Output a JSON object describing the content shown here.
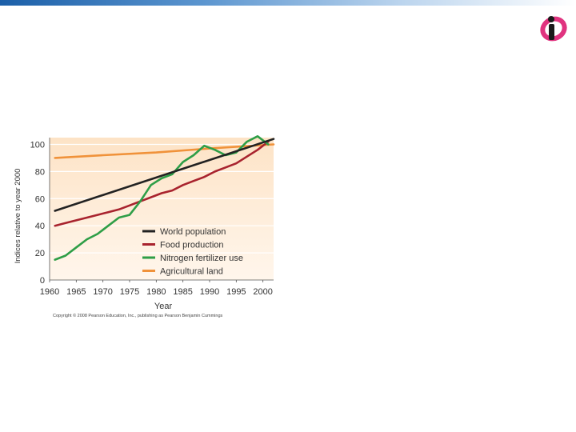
{
  "chart_data": {
    "type": "line",
    "title": "",
    "xlabel": "Year",
    "ylabel": "Indices relative to year 2000",
    "xlim": [
      1960,
      2002
    ],
    "ylim": [
      0,
      105
    ],
    "x_ticks": [
      1960,
      1965,
      1970,
      1975,
      1980,
      1985,
      1990,
      1995,
      2000
    ],
    "y_ticks": [
      0,
      20,
      40,
      60,
      80,
      100
    ],
    "legend_position": "bottom-right",
    "copyright": "Copyright © 2008 Pearson Education, Inc., publishing as Pearson Benjamin Cummings",
    "series": [
      {
        "name": "World population",
        "color": "#222222",
        "x": [
          1961,
          2002
        ],
        "y": [
          51,
          104
        ]
      },
      {
        "name": "Food production",
        "color": "#a8232e",
        "x": [
          1961,
          1963,
          1965,
          1967,
          1969,
          1971,
          1973,
          1975,
          1977,
          1979,
          1981,
          1983,
          1985,
          1987,
          1989,
          1991,
          1993,
          1995,
          1997,
          1999,
          2001
        ],
        "y": [
          40,
          42,
          44,
          46,
          48,
          50,
          52,
          55,
          58,
          61,
          64,
          66,
          70,
          73,
          76,
          80,
          83,
          86,
          91,
          96,
          102
        ]
      },
      {
        "name": "Nitrogen fertilizer use",
        "color": "#2e9e47",
        "x": [
          1961,
          1963,
          1965,
          1967,
          1969,
          1971,
          1973,
          1975,
          1977,
          1979,
          1981,
          1983,
          1985,
          1987,
          1989,
          1991,
          1993,
          1995,
          1997,
          1999,
          2001
        ],
        "y": [
          15,
          18,
          24,
          30,
          34,
          40,
          46,
          48,
          58,
          70,
          75,
          78,
          87,
          92,
          99,
          96,
          92,
          94,
          102,
          106,
          100
        ]
      },
      {
        "name": "Agricultural land",
        "color": "#f0923a",
        "x": [
          1961,
          1970,
          1980,
          1990,
          2002
        ],
        "y": [
          90,
          92,
          94,
          97,
          100
        ]
      }
    ]
  }
}
